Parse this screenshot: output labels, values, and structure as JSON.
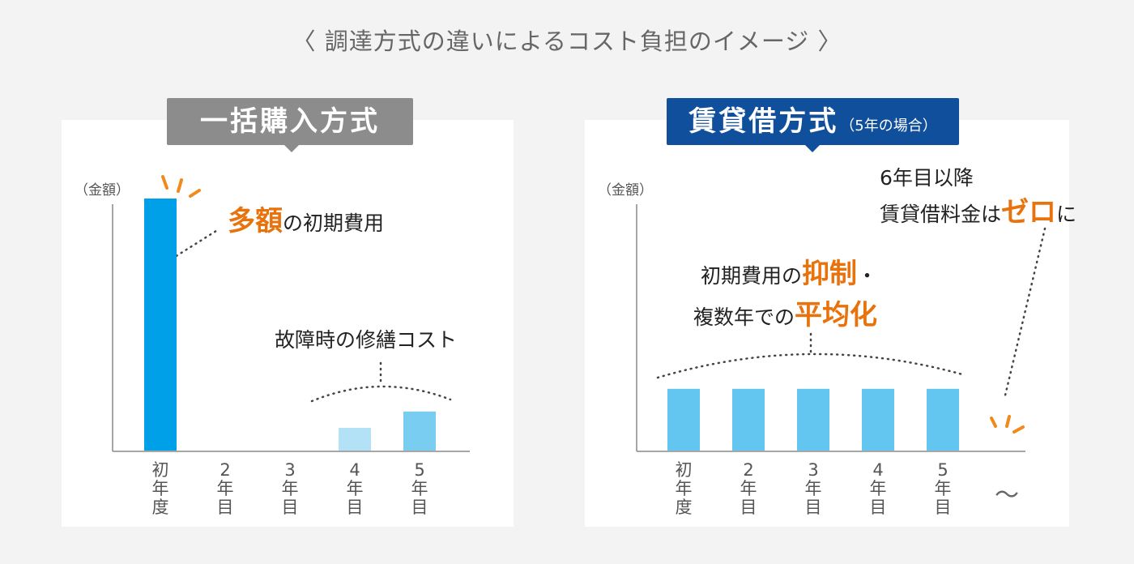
{
  "page": {
    "title": "〈 調達方式の違いによるコスト負担のイメージ 〉"
  },
  "colors": {
    "bar_initial": "#00a0e9",
    "bar_repair_light": "#b3e2f7",
    "bar_repair": "#79cdf1",
    "bar_lease": "#62c6f0",
    "highlight": "#e8720c",
    "header_gray": "#8c8c8c",
    "header_blue": "#104f9c"
  },
  "left_panel": {
    "header": "一括購入方式",
    "axis_unit": "（金額）",
    "callout_initial": {
      "highlight": "多額",
      "text": "の初期費用"
    },
    "callout_repair": "故障時の修繕コスト"
  },
  "right_panel": {
    "header": "賃貸借方式",
    "header_sub": "（5年の場合）",
    "axis_unit": "（金額）",
    "callout_zero_line1": "6年目以降",
    "callout_zero_line2_a": "賃貸借料金は",
    "callout_zero_line2_hl": "ゼロ",
    "callout_zero_line2_b": "に",
    "callout_even_line1_a": "初期費用の",
    "callout_even_line1_hl": "抑制",
    "callout_even_line1_b": "・",
    "callout_even_line2_a": "複数年での",
    "callout_even_line2_hl": "平均化",
    "after_label": "〜"
  },
  "chart_data": [
    {
      "type": "bar",
      "title": "一括購入方式",
      "ylabel": "（金額）",
      "categories": [
        "初年度",
        "2年目",
        "3年目",
        "4年目",
        "5年目"
      ],
      "values": [
        100,
        0,
        0,
        9,
        15.5
      ],
      "ylim": [
        0,
        100
      ],
      "bar_colors": [
        "#00a0e9",
        "#00a0e9",
        "#00a0e9",
        "#b3e2f7",
        "#79cdf1"
      ],
      "grid": false
    },
    {
      "type": "bar",
      "title": "賃貸借方式（5年の場合）",
      "ylabel": "（金額）",
      "categories": [
        "初年度",
        "2年目",
        "3年目",
        "4年目",
        "5年目",
        "〜"
      ],
      "values": [
        24.5,
        24.5,
        24.5,
        24.5,
        24.5,
        0
      ],
      "ylim": [
        0,
        100
      ],
      "bar_colors": [
        "#62c6f0",
        "#62c6f0",
        "#62c6f0",
        "#62c6f0",
        "#62c6f0",
        "#62c6f0"
      ],
      "grid": false
    }
  ]
}
